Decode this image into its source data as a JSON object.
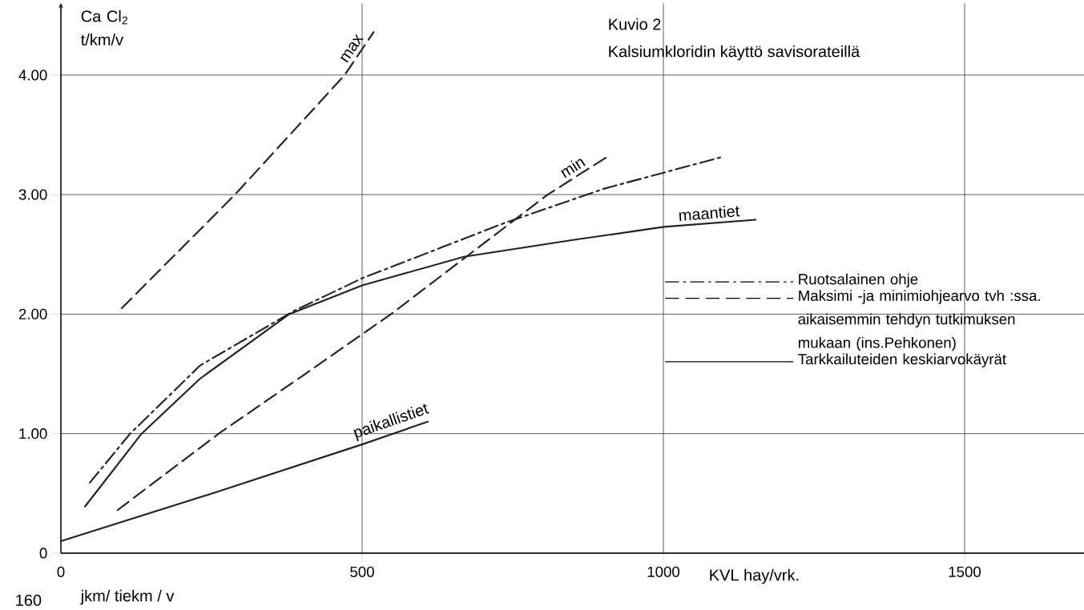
{
  "chart_data": {
    "type": "line",
    "title": "Kuvio 2",
    "subtitle": "Kalsiumkloridin käyttö savisorateillä",
    "xlabel": "KVL hay/vrk.",
    "ylabel": "Ca Cl$_{2}$ t/km/v",
    "xlim": [
      0,
      1700
    ],
    "ylim": [
      0,
      4.6
    ],
    "xticks": [
      0,
      500,
      1000,
      1500
    ],
    "yticks": [
      0,
      {
        "value": 1,
        "label": "1.00"
      },
      {
        "value": 2,
        "label": "2.00"
      },
      {
        "value": 3,
        "label": "3.00"
      },
      {
        "value": 4,
        "label": "4.00"
      }
    ],
    "grid": true,
    "legend": "right",
    "marker": "none",
    "series": [
      {
        "name": "Ruotsalainen ohje",
        "color": "#222222",
        "line_style": "dashdot",
        "x": [
          48,
          115,
          231,
          388,
          500,
          735,
          902,
          1101
        ],
        "values": [
          0.59,
          1.0,
          1.57,
          2.03,
          2.3,
          2.76,
          3.05,
          3.32
        ]
      },
      {
        "name": "max",
        "color": "#222222",
        "line_style": "dashed",
        "x": [
          101,
          289,
          471,
          519
        ],
        "values": [
          2.05,
          3.0,
          4.0,
          4.36
        ]
      },
      {
        "name": "min",
        "color": "#222222",
        "line_style": "dashed",
        "x": [
          94,
          262,
          400,
          548,
          808,
          908
        ],
        "values": [
          0.36,
          1.0,
          1.48,
          2.0,
          3.0,
          3.32
        ]
      },
      {
        "name": "maantiet",
        "color": "#222222",
        "line_style": "solid",
        "x": [
          40,
          134,
          231,
          379,
          500,
          669,
          850,
          1001,
          1153
        ],
        "values": [
          0.39,
          1.0,
          1.46,
          2.0,
          2.24,
          2.48,
          2.62,
          2.73,
          2.79
        ]
      },
      {
        "name": "paikallistiet",
        "color": "#222222",
        "line_style": "solid",
        "x": [
          0,
          270,
          500,
          609
        ],
        "values": [
          0.1,
          0.53,
          0.91,
          1.1
        ]
      }
    ],
    "annotations": [
      "Maksimi -ja minimiohjearvo tvh :ssa. aikaisemmin tehdyn tutkimuksen mukaan (ins.Pehkonen)",
      "Tarkkailuteiden keskiarvokäyrät",
      "160",
      "jkm/ tiekm / v"
    ]
  }
}
